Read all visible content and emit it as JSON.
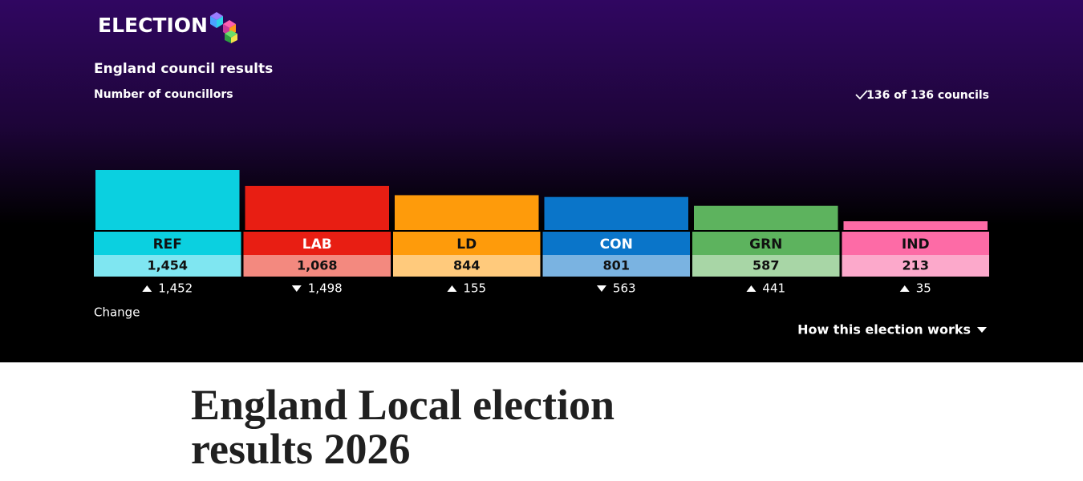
{
  "header": {
    "logo": "ELECTION",
    "title": "England council results",
    "subtitle": "Number of councillors",
    "status": "136 of 136 councils",
    "change_label": "Change",
    "link": "How this election works"
  },
  "chart_data": {
    "type": "bar",
    "categories": [
      "REF",
      "LAB",
      "LD",
      "CON",
      "GRN",
      "IND"
    ],
    "values": [
      1454,
      1068,
      844,
      801,
      587,
      213
    ],
    "value_labels": [
      "1,454",
      "1,068",
      "844",
      "801",
      "587",
      "213"
    ],
    "colors": [
      "#0bd0e0",
      "#e81e13",
      "#fe9b0b",
      "#0a75c9",
      "#5db35e",
      "#fd6ba6"
    ],
    "light_colors": [
      "#7fe6f1",
      "#f3897f",
      "#ffca7c",
      "#7ab3e1",
      "#a8d6a6",
      "#fca9cb"
    ],
    "text_colors": [
      "#111111",
      "#ffffff",
      "#111111",
      "#ffffff",
      "#111111",
      "#111111"
    ],
    "changes": [
      1452,
      -1498,
      155,
      -563,
      441,
      35
    ],
    "change_labels": [
      "1,452",
      "1,498",
      "155",
      "563",
      "441",
      "35"
    ]
  },
  "page": {
    "title": "England Local election results 2026"
  }
}
